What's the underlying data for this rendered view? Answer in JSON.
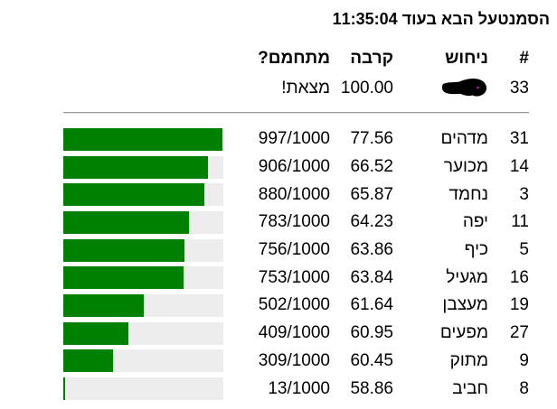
{
  "title": "הסמנטעל הבא בעוד 11:35:04",
  "table": {
    "headers": {
      "rank": "#",
      "guess": "ניחוש",
      "closeness": "קרבה",
      "warm": "מתחמם?"
    },
    "found_row": {
      "rank": "33",
      "guess_hidden": "censored-scribble",
      "closeness": "100.00",
      "warm": "מצאת!"
    },
    "rows": [
      {
        "rank": "31",
        "guess": "מדהים",
        "closeness": "77.56",
        "warm": "997/1000",
        "bar_pct": 99.7
      },
      {
        "rank": "14",
        "guess": "מכוער",
        "closeness": "66.52",
        "warm": "906/1000",
        "bar_pct": 90.6
      },
      {
        "rank": "3",
        "guess": "נחמד",
        "closeness": "65.87",
        "warm": "880/1000",
        "bar_pct": 88.0
      },
      {
        "rank": "11",
        "guess": "יפה",
        "closeness": "64.23",
        "warm": "783/1000",
        "bar_pct": 78.3
      },
      {
        "rank": "5",
        "guess": "כיף",
        "closeness": "63.86",
        "warm": "756/1000",
        "bar_pct": 75.6
      },
      {
        "rank": "16",
        "guess": "מגעיל",
        "closeness": "63.84",
        "warm": "753/1000",
        "bar_pct": 75.3
      },
      {
        "rank": "19",
        "guess": "מעצבן",
        "closeness": "61.64",
        "warm": "502/1000",
        "bar_pct": 50.2
      },
      {
        "rank": "27",
        "guess": "מפעים",
        "closeness": "60.95",
        "warm": "409/1000",
        "bar_pct": 40.9
      },
      {
        "rank": "9",
        "guess": "מתוק",
        "closeness": "60.45",
        "warm": "309/1000",
        "bar_pct": 30.9
      },
      {
        "rank": "8",
        "guess": "חביב",
        "closeness": "58.86",
        "warm": "13/1000",
        "bar_pct": 1.3
      }
    ]
  },
  "chart_data": {
    "type": "bar",
    "categories": [
      "מדהים",
      "מכוער",
      "נחמד",
      "יפה",
      "כיף",
      "מגעיל",
      "מעצבן",
      "מפעים",
      "מתוק",
      "חביב"
    ],
    "values": [
      997,
      906,
      880,
      783,
      756,
      753,
      502,
      409,
      309,
      13
    ],
    "title": "מתחמם? (x/1000)",
    "xlabel": "",
    "ylabel": "",
    "xlim": [
      0,
      1000
    ]
  },
  "colors": {
    "bar_green": "#008000",
    "bar_track": "#ededed",
    "separator": "#9b9b9b",
    "scribble_dot": "#bf1fae"
  }
}
